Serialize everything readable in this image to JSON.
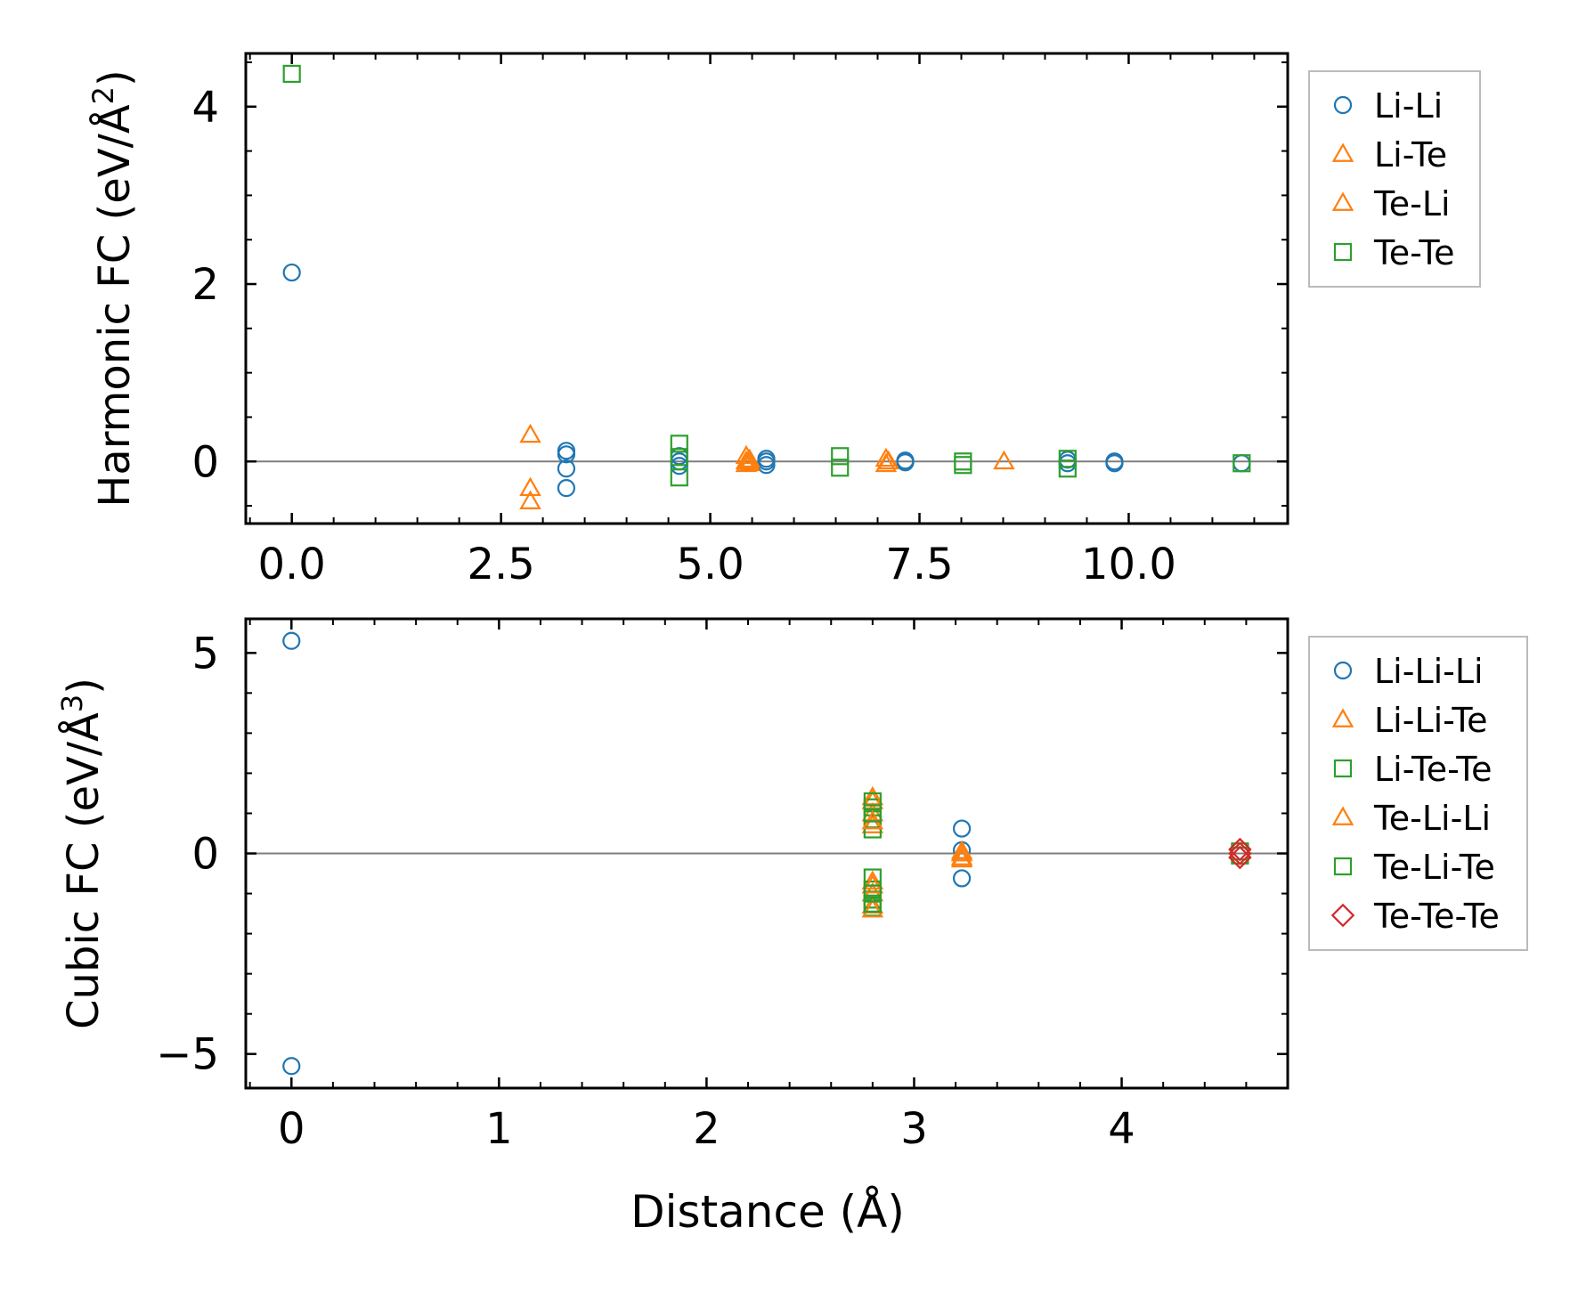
{
  "chart_data": [
    {
      "type": "scatter",
      "ylabel": "Harmonic FC (eV/Å²)",
      "ylabel_main": "Harmonic FC (eV/Å",
      "ylabel_sup": "2",
      "ylabel_end": ")",
      "xlabel": "",
      "xlim": [
        -0.55,
        11.9
      ],
      "ylim": [
        -0.7,
        4.6
      ],
      "x_ticks": [
        0.0,
        2.5,
        5.0,
        7.5,
        10.0
      ],
      "x_tick_labels": [
        "0.0",
        "2.5",
        "5.0",
        "7.5",
        "10.0"
      ],
      "y_ticks": [
        0,
        2,
        4
      ],
      "y_tick_labels": [
        "0",
        "2",
        "4"
      ],
      "zero_line": true,
      "legend_position": "outside-right",
      "series": [
        {
          "name": "Li-Li",
          "marker": "circle",
          "color": "#1f77b4",
          "points": [
            [
              0.0,
              2.13
            ],
            [
              3.28,
              0.12
            ],
            [
              3.28,
              0.08
            ],
            [
              3.28,
              -0.08
            ],
            [
              3.28,
              -0.3
            ],
            [
              4.63,
              0.06
            ],
            [
              4.63,
              0.0
            ],
            [
              4.63,
              -0.05
            ],
            [
              5.67,
              0.03
            ],
            [
              5.67,
              0.0
            ],
            [
              5.67,
              -0.04
            ],
            [
              7.33,
              0.01
            ],
            [
              7.33,
              -0.01
            ],
            [
              9.27,
              0.02
            ],
            [
              9.27,
              -0.02
            ],
            [
              9.83,
              0.0
            ],
            [
              9.83,
              -0.02
            ],
            [
              11.35,
              -0.02
            ]
          ]
        },
        {
          "name": "Li-Te",
          "marker": "triangle",
          "color": "#ff7f0e",
          "points": [
            [
              2.85,
              0.3
            ],
            [
              2.85,
              -0.3
            ],
            [
              2.85,
              -0.45
            ],
            [
              5.43,
              0.06
            ],
            [
              5.43,
              0.0
            ],
            [
              5.43,
              -0.03
            ],
            [
              7.1,
              0.03
            ],
            [
              7.1,
              -0.03
            ],
            [
              8.51,
              0.0
            ]
          ]
        },
        {
          "name": "Te-Li",
          "marker": "triangle",
          "color": "#ff7f0e",
          "points": [
            [
              5.47,
              0.02
            ],
            [
              5.47,
              -0.02
            ],
            [
              7.13,
              0.0
            ]
          ]
        },
        {
          "name": "Te-Te",
          "marker": "square",
          "color": "#2ca02c",
          "points": [
            [
              0.0,
              4.37
            ],
            [
              4.63,
              0.2
            ],
            [
              4.63,
              0.05
            ],
            [
              4.63,
              -0.18
            ],
            [
              6.55,
              0.06
            ],
            [
              6.55,
              -0.07
            ],
            [
              8.02,
              0.0
            ],
            [
              8.02,
              -0.04
            ],
            [
              9.27,
              0.03
            ],
            [
              9.27,
              -0.08
            ],
            [
              11.35,
              -0.02
            ]
          ]
        }
      ]
    },
    {
      "type": "scatter",
      "ylabel": "Cubic FC (eV/Å³)",
      "ylabel_main": "Cubic FC (eV/Å",
      "ylabel_sup": "3",
      "ylabel_end": ")",
      "xlabel": "Distance (Å)",
      "xlim": [
        -0.22,
        4.8
      ],
      "ylim": [
        -5.85,
        5.85
      ],
      "x_ticks": [
        0,
        1,
        2,
        3,
        4
      ],
      "x_tick_labels": [
        "0",
        "1",
        "2",
        "3",
        "4"
      ],
      "y_ticks": [
        -5,
        0,
        5
      ],
      "y_tick_labels": [
        "−5",
        "0",
        "5"
      ],
      "zero_line": true,
      "legend_position": "outside-right",
      "series": [
        {
          "name": "Li-Li-Li",
          "marker": "circle",
          "color": "#1f77b4",
          "points": [
            [
              0.0,
              5.3
            ],
            [
              0.0,
              -5.3
            ],
            [
              3.23,
              0.62
            ],
            [
              3.23,
              0.08
            ],
            [
              3.23,
              -0.62
            ]
          ]
        },
        {
          "name": "Li-Li-Te",
          "marker": "triangle",
          "color": "#ff7f0e",
          "points": [
            [
              2.8,
              1.3
            ],
            [
              2.8,
              1.0
            ],
            [
              2.8,
              0.7
            ],
            [
              2.8,
              -0.7
            ],
            [
              2.8,
              -1.0
            ],
            [
              2.8,
              -1.3
            ],
            [
              3.23,
              0.0
            ],
            [
              3.23,
              -0.1
            ]
          ]
        },
        {
          "name": "Li-Te-Te",
          "marker": "square",
          "color": "#2ca02c",
          "points": [
            [
              2.8,
              1.15
            ],
            [
              2.8,
              0.85
            ],
            [
              2.8,
              0.6
            ],
            [
              2.8,
              -0.6
            ],
            [
              2.8,
              -0.9
            ],
            [
              2.8,
              -1.15
            ],
            [
              2.8,
              -1.35
            ]
          ]
        },
        {
          "name": "Te-Li-Li",
          "marker": "triangle",
          "color": "#ff7f0e",
          "points": [
            [
              2.8,
              1.4
            ],
            [
              2.8,
              0.8
            ],
            [
              2.8,
              -0.8
            ],
            [
              2.8,
              -1.4
            ],
            [
              3.23,
              0.05
            ],
            [
              3.23,
              -0.15
            ]
          ]
        },
        {
          "name": "Te-Li-Te",
          "marker": "square",
          "color": "#2ca02c",
          "points": [
            [
              2.8,
              1.3
            ],
            [
              2.8,
              1.0
            ],
            [
              2.8,
              -1.0
            ],
            [
              2.8,
              -1.25
            ],
            [
              4.57,
              0.05
            ],
            [
              4.57,
              -0.05
            ]
          ]
        },
        {
          "name": "Te-Te-Te",
          "marker": "diamond",
          "color": "#d62728",
          "points": [
            [
              4.57,
              0.1
            ],
            [
              4.57,
              0.0
            ],
            [
              4.57,
              -0.1
            ]
          ]
        }
      ]
    }
  ]
}
